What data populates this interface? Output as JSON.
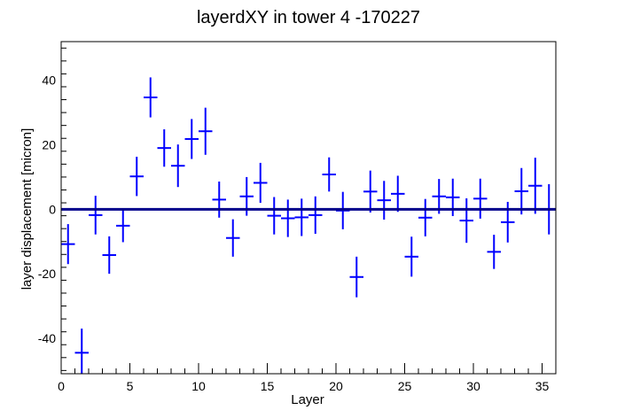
{
  "chart_data": {
    "type": "scatter",
    "title": "layerdXY in tower 4 -170227",
    "xlabel": "Layer",
    "ylabel": "layer displacement [micron]",
    "xlim": [
      0,
      36
    ],
    "ylim": [
      -51,
      52
    ],
    "x_ticks": [
      "0",
      "5",
      "10",
      "15",
      "20",
      "25",
      "30",
      "35"
    ],
    "y_ticks": [
      "-40",
      "-20",
      "0",
      "20",
      "40"
    ],
    "reference_line": 0,
    "grid": false,
    "legend": "none",
    "colors": {
      "markers": "#0000ff",
      "reference_line": "#00008b",
      "frame": "#000000"
    },
    "series": [
      {
        "x_halfwidth": 0.5,
        "x": [
          0.5,
          1.5,
          2.5,
          3.5,
          4.5,
          5.5,
          6.5,
          7.5,
          8.5,
          9.5,
          10.5,
          11.5,
          12.5,
          13.5,
          14.5,
          15.5,
          16.5,
          17.5,
          18.5,
          19.5,
          20.5,
          21.5,
          22.5,
          23.5,
          24.5,
          25.5,
          26.5,
          27.5,
          28.5,
          29.5,
          30.5,
          31.5,
          32.5,
          33.5,
          34.5,
          35.5
        ],
        "y": [
          -10.8,
          -44.5,
          -1.8,
          -14.2,
          -5.1,
          10.2,
          34.7,
          19.0,
          13.5,
          21.8,
          24.2,
          3.0,
          -8.9,
          4.0,
          8.2,
          -2.0,
          -2.8,
          -2.5,
          -1.8,
          10.8,
          -0.4,
          -21.0,
          5.5,
          2.8,
          4.8,
          -14.7,
          -2.6,
          4.0,
          3.7,
          -3.5,
          3.3,
          -13.2,
          -4.0,
          5.6,
          7.3,
          0.0
        ],
        "yerr": [
          6.2,
          7.5,
          6.0,
          5.8,
          5.1,
          6.1,
          6.2,
          5.8,
          6.6,
          6.2,
          7.3,
          5.6,
          5.8,
          6.0,
          6.2,
          5.8,
          5.8,
          5.8,
          5.8,
          5.3,
          5.8,
          6.3,
          6.5,
          6.0,
          5.6,
          6.2,
          5.8,
          5.4,
          5.8,
          6.9,
          6.2,
          5.3,
          6.3,
          7.2,
          8.7,
          7.8
        ]
      }
    ]
  }
}
